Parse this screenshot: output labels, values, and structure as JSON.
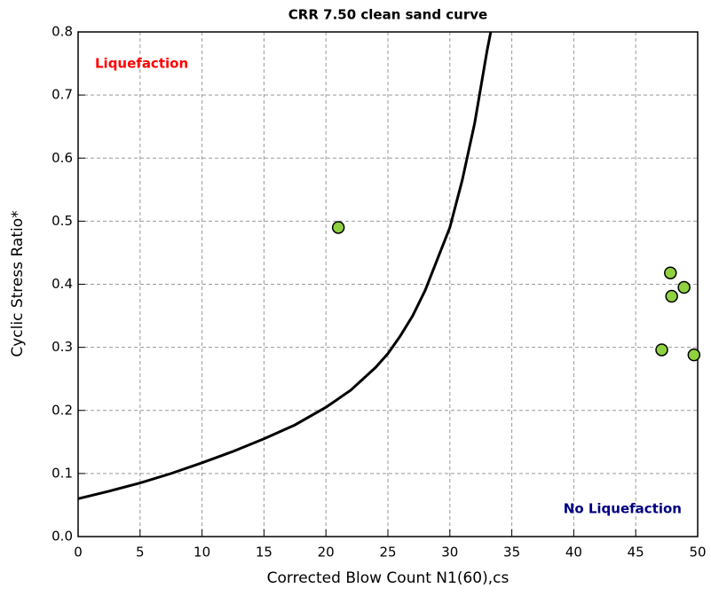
{
  "chart_data": {
    "type": "scatter",
    "title": "CRR 7.50 clean sand curve",
    "x_label": "Corrected Blow Count N1(60),cs",
    "y_label": "Cyclic Stress Ratio*",
    "annotations": [
      {
        "text": "Liquefaction",
        "color": "#ff0000"
      },
      {
        "text": "No Liquefaction",
        "color": "#000080"
      }
    ],
    "xlim": [
      0,
      50
    ],
    "ylim": [
      0,
      0.8
    ],
    "xticks": [
      0,
      5,
      10,
      15,
      20,
      25,
      30,
      35,
      40,
      45,
      50
    ],
    "yticks": [
      {
        "value": 0,
        "label": "0.0"
      },
      0.1,
      0.2,
      0.3,
      0.4,
      0.5,
      0.6,
      0.7,
      0.8
    ],
    "grid": true,
    "series": [
      {
        "kind": "line",
        "color": "#000000",
        "x": [
          0,
          2.5,
          5,
          7.5,
          10,
          12.5,
          15,
          17.5,
          20,
          22,
          24,
          25,
          26,
          27,
          28,
          29,
          30,
          31,
          32,
          33,
          33.3
        ],
        "values": [
          0.06,
          0.072,
          0.085,
          0.1,
          0.117,
          0.135,
          0.155,
          0.177,
          0.205,
          0.232,
          0.268,
          0.29,
          0.318,
          0.35,
          0.39,
          0.44,
          0.49,
          0.565,
          0.655,
          0.77,
          0.8
        ]
      },
      {
        "kind": "points",
        "color": "#8fd13f",
        "x": [
          21,
          47.8,
          48.9,
          47.9,
          47.1,
          49.7
        ],
        "values": [
          0.49,
          0.418,
          0.395,
          0.381,
          0.296,
          0.288
        ]
      }
    ]
  }
}
